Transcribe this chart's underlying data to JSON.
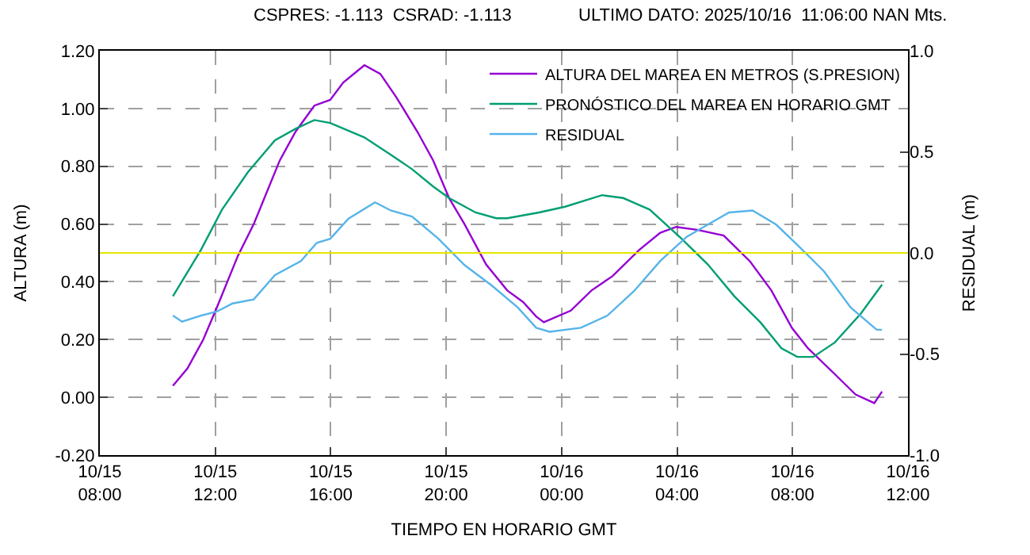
{
  "chart_data": {
    "type": "line",
    "annotations": [
      "CSPRES: -1.113  CSRAD: -1.113",
      "ULTIMO DATO: 2025/10/16  11:06:00 NAN Mts."
    ],
    "xlabel": "TIEMPO EN HORARIO GMT",
    "ylabel": "ALTURA (m)",
    "y2label": "RESIDUAL (m)",
    "series": [
      {
        "name": "ALTURA DEL MAREA EN METROS (S.PRESION)",
        "color": "#9400d3",
        "x": [
          "2025-10-15T10:32",
          "2025-10-15T11:02",
          "2025-10-15T11:35",
          "2025-10-15T12:03",
          "2025-10-15T12:47",
          "2025-10-15T13:20",
          "2025-10-15T14:14",
          "2025-10-15T14:47",
          "2025-10-15T15:26",
          "2025-10-15T15:59",
          "2025-10-15T16:26",
          "2025-10-15T17:10",
          "2025-10-15T17:43",
          "2025-10-15T18:16",
          "2025-10-15T19:00",
          "2025-10-15T19:33",
          "2025-10-15T20:06",
          "2025-10-15T20:38",
          "2025-10-15T21:23",
          "2025-10-15T22:07",
          "2025-10-15T22:40",
          "2025-10-15T23:07",
          "2025-10-15T23:23",
          "2025-10-16T00:19",
          "2025-10-16T01:02",
          "2025-10-16T01:46",
          "2025-10-16T02:41",
          "2025-10-16T03:25",
          "2025-10-16T03:58",
          "2025-10-16T04:42",
          "2025-10-16T05:37",
          "2025-10-16T06:32",
          "2025-10-16T07:16",
          "2025-10-16T07:59",
          "2025-10-16T08:32",
          "2025-10-16T09:28",
          "2025-10-16T10:11",
          "2025-10-16T10:50",
          "2025-10-16T11:06"
        ],
        "values": [
          0.04,
          0.1,
          0.2,
          0.31,
          0.49,
          0.6,
          0.82,
          0.92,
          1.01,
          1.03,
          1.09,
          1.15,
          1.12,
          1.04,
          0.92,
          0.82,
          0.69,
          0.6,
          0.46,
          0.37,
          0.33,
          0.28,
          0.26,
          0.3,
          0.37,
          0.42,
          0.51,
          0.57,
          0.59,
          0.58,
          0.56,
          0.47,
          0.37,
          0.24,
          0.17,
          0.08,
          0.01,
          -0.02,
          0.02
        ]
      },
      {
        "name": "PRONÓSTICO DEL MAREA EN HORARIO GMT",
        "color": "#009e73",
        "x": [
          "2025-10-15T10:32",
          "2025-10-15T11:30",
          "2025-10-15T12:14",
          "2025-10-15T13:08",
          "2025-10-15T14:04",
          "2025-10-15T14:47",
          "2025-10-15T15:26",
          "2025-10-15T15:59",
          "2025-10-15T17:10",
          "2025-10-15T18:05",
          "2025-10-15T18:49",
          "2025-10-15T19:33",
          "2025-10-15T20:06",
          "2025-10-15T21:01",
          "2025-10-15T21:44",
          "2025-10-15T22:07",
          "2025-10-15T23:13",
          "2025-10-16T00:07",
          "2025-10-16T01:24",
          "2025-10-16T02:08",
          "2025-10-16T03:03",
          "2025-10-16T04:09",
          "2025-10-16T05:04",
          "2025-10-16T05:59",
          "2025-10-16T06:53",
          "2025-10-16T07:37",
          "2025-10-16T08:10",
          "2025-10-16T08:43",
          "2025-10-16T09:28",
          "2025-10-16T10:22",
          "2025-10-16T11:06"
        ],
        "values": [
          0.35,
          0.51,
          0.65,
          0.78,
          0.89,
          0.93,
          0.96,
          0.95,
          0.9,
          0.84,
          0.79,
          0.73,
          0.69,
          0.64,
          0.62,
          0.62,
          0.64,
          0.66,
          0.7,
          0.69,
          0.65,
          0.55,
          0.46,
          0.35,
          0.26,
          0.17,
          0.14,
          0.14,
          0.19,
          0.29,
          0.39
        ]
      },
      {
        "name": "RESIDUAL",
        "color": "#56b4e9",
        "axis": "y2",
        "x": [
          "2025-10-15T10:32",
          "2025-10-15T10:51",
          "2025-10-15T11:30",
          "2025-10-15T12:03",
          "2025-10-15T12:36",
          "2025-10-15T13:20",
          "2025-10-15T14:04",
          "2025-10-15T14:58",
          "2025-10-15T15:31",
          "2025-10-15T15:59",
          "2025-10-15T16:37",
          "2025-10-15T17:32",
          "2025-10-15T18:05",
          "2025-10-15T18:49",
          "2025-10-15T19:44",
          "2025-10-15T20:38",
          "2025-10-15T21:34",
          "2025-10-15T22:29",
          "2025-10-15T23:07",
          "2025-10-15T23:35",
          "2025-10-16T00:40",
          "2025-10-16T01:35",
          "2025-10-16T02:30",
          "2025-10-16T03:25",
          "2025-10-16T04:20",
          "2025-10-16T05:04",
          "2025-10-16T05:48",
          "2025-10-16T06:37",
          "2025-10-16T07:26",
          "2025-10-16T08:10",
          "2025-10-16T09:05",
          "2025-10-16T10:01",
          "2025-10-16T10:55",
          "2025-10-16T11:06"
        ],
        "values": [
          -0.31,
          -0.34,
          -0.31,
          -0.29,
          -0.25,
          -0.23,
          -0.11,
          -0.04,
          0.05,
          0.07,
          0.17,
          0.25,
          0.21,
          0.18,
          0.07,
          -0.06,
          -0.16,
          -0.27,
          -0.37,
          -0.39,
          -0.37,
          -0.31,
          -0.19,
          -0.04,
          0.08,
          0.14,
          0.2,
          0.21,
          0.14,
          0.04,
          -0.09,
          -0.27,
          -0.38,
          -0.38
        ]
      }
    ],
    "xlim": [
      "2025-10-15T08:00",
      "2025-10-16T12:00"
    ],
    "xticks": [
      {
        "value": "2025-10-15T08:00",
        "label": "10/15\n08:00"
      },
      {
        "value": "2025-10-15T12:00",
        "label": "10/15\n12:00"
      },
      {
        "value": "2025-10-15T16:00",
        "label": "10/15\n16:00"
      },
      {
        "value": "2025-10-15T20:00",
        "label": "10/15\n20:00"
      },
      {
        "value": "2025-10-16T00:00",
        "label": "10/16\n00:00"
      },
      {
        "value": "2025-10-16T04:00",
        "label": "10/16\n04:00"
      },
      {
        "value": "2025-10-16T08:00",
        "label": "10/16\n08:00"
      },
      {
        "value": "2025-10-16T12:00",
        "label": "10/16\n12:00"
      }
    ],
    "ylim": [
      -0.2,
      1.2
    ],
    "yticks": [
      {
        "value": -0.2,
        "label": "-0.20"
      },
      {
        "value": 0,
        "label": "0.00"
      },
      {
        "value": 0.2,
        "label": "0.20"
      },
      {
        "value": 0.4,
        "label": "0.40"
      },
      {
        "value": 0.6,
        "label": "0.60"
      },
      {
        "value": 0.8,
        "label": "0.80"
      },
      {
        "value": 1.0,
        "label": "1.00"
      },
      {
        "value": 1.2,
        "label": "1.20"
      }
    ],
    "y2lim": [
      -1.0,
      1.0
    ],
    "y2ticks": [
      {
        "value": -1.0,
        "label": "-1.0"
      },
      {
        "value": -0.5,
        "label": "-0.5"
      },
      {
        "value": 0,
        "label": "0.0"
      },
      {
        "value": 0.5,
        "label": "0.5"
      },
      {
        "value": 1.0,
        "label": "1.0"
      }
    ],
    "ref_lines": [
      {
        "axis": "y2",
        "value": 0,
        "label": null,
        "color": "#e5e500"
      }
    ],
    "grid": true,
    "legend": "top right",
    "line_style": "solid"
  }
}
